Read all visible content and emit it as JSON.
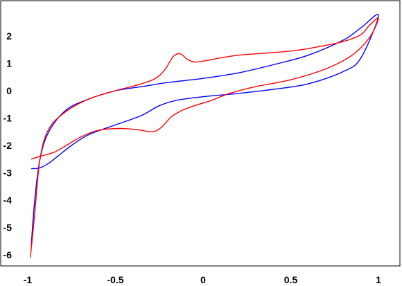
{
  "chart_data": {
    "type": "line",
    "title": "",
    "xlabel": "",
    "ylabel": "",
    "xlim": [
      -1,
      1
    ],
    "ylim": [
      -6,
      2.8
    ],
    "x_ticks": [
      {
        "value": -1,
        "label": "-1"
      },
      {
        "value": -0.5,
        "label": "-0.5"
      },
      {
        "value": 0,
        "label": "0"
      },
      {
        "value": 0.5,
        "label": "0.5"
      },
      {
        "value": 1,
        "label": "1"
      }
    ],
    "y_ticks": [
      {
        "value": 2,
        "label": "2"
      },
      {
        "value": 1,
        "label": "1"
      },
      {
        "value": 0,
        "label": "0"
      },
      {
        "value": -1,
        "label": "-1"
      },
      {
        "value": -2,
        "label": "-2"
      },
      {
        "value": -3,
        "label": "-3"
      },
      {
        "value": -4,
        "label": "-4"
      },
      {
        "value": -5,
        "label": "-5"
      },
      {
        "value": -6,
        "label": "-6"
      }
    ],
    "grid": false,
    "legend": "none",
    "series": [
      {
        "color": "#0000ff",
        "points": [
          [
            -0.98,
            -2.85
          ],
          [
            -0.93,
            -2.82
          ],
          [
            -0.88,
            -2.65
          ],
          [
            -0.83,
            -2.4
          ],
          [
            -0.75,
            -2.0
          ],
          [
            -0.65,
            -1.6
          ],
          [
            -0.5,
            -1.25
          ],
          [
            -0.35,
            -0.9
          ],
          [
            -0.25,
            -0.55
          ],
          [
            -0.15,
            -0.35
          ],
          [
            0.0,
            -0.22
          ],
          [
            0.2,
            -0.1
          ],
          [
            0.4,
            0.05
          ],
          [
            0.6,
            0.25
          ],
          [
            0.8,
            0.7
          ],
          [
            0.9,
            1.2
          ],
          [
            1.0,
            2.75
          ],
          [
            0.9,
            2.3
          ],
          [
            0.8,
            1.85
          ],
          [
            0.6,
            1.3
          ],
          [
            0.4,
            0.95
          ],
          [
            0.2,
            0.65
          ],
          [
            0.0,
            0.45
          ],
          [
            -0.2,
            0.3
          ],
          [
            -0.35,
            0.15
          ],
          [
            -0.5,
            0.0
          ],
          [
            -0.65,
            -0.3
          ],
          [
            -0.78,
            -0.7
          ],
          [
            -0.88,
            -1.5
          ],
          [
            -0.93,
            -2.5
          ],
          [
            -0.96,
            -4.0
          ],
          [
            -0.98,
            -5.65
          ]
        ]
      },
      {
        "color": "#ff0000",
        "points": [
          [
            -0.98,
            -2.5
          ],
          [
            -0.93,
            -2.4
          ],
          [
            -0.85,
            -2.25
          ],
          [
            -0.78,
            -2.0
          ],
          [
            -0.7,
            -1.7
          ],
          [
            -0.6,
            -1.45
          ],
          [
            -0.48,
            -1.38
          ],
          [
            -0.38,
            -1.42
          ],
          [
            -0.29,
            -1.5
          ],
          [
            -0.24,
            -1.35
          ],
          [
            -0.18,
            -0.95
          ],
          [
            -0.12,
            -0.72
          ],
          [
            -0.05,
            -0.55
          ],
          [
            0.05,
            -0.35
          ],
          [
            0.15,
            -0.1
          ],
          [
            0.3,
            0.15
          ],
          [
            0.5,
            0.4
          ],
          [
            0.7,
            0.8
          ],
          [
            0.85,
            1.3
          ],
          [
            0.95,
            1.95
          ],
          [
            1.0,
            2.65
          ],
          [
            0.95,
            2.4
          ],
          [
            0.9,
            2.05
          ],
          [
            0.8,
            1.8
          ],
          [
            0.65,
            1.6
          ],
          [
            0.5,
            1.45
          ],
          [
            0.3,
            1.35
          ],
          [
            0.2,
            1.3
          ],
          [
            0.1,
            1.2
          ],
          [
            0.0,
            1.08
          ],
          [
            -0.05,
            1.05
          ],
          [
            -0.09,
            1.15
          ],
          [
            -0.13,
            1.35
          ],
          [
            -0.17,
            1.25
          ],
          [
            -0.22,
            0.75
          ],
          [
            -0.28,
            0.42
          ],
          [
            -0.38,
            0.2
          ],
          [
            -0.5,
            0.0
          ],
          [
            -0.65,
            -0.3
          ],
          [
            -0.78,
            -0.75
          ],
          [
            -0.88,
            -1.4
          ],
          [
            -0.93,
            -2.5
          ],
          [
            -0.96,
            -4.5
          ],
          [
            -0.985,
            -6.1
          ]
        ]
      }
    ]
  }
}
